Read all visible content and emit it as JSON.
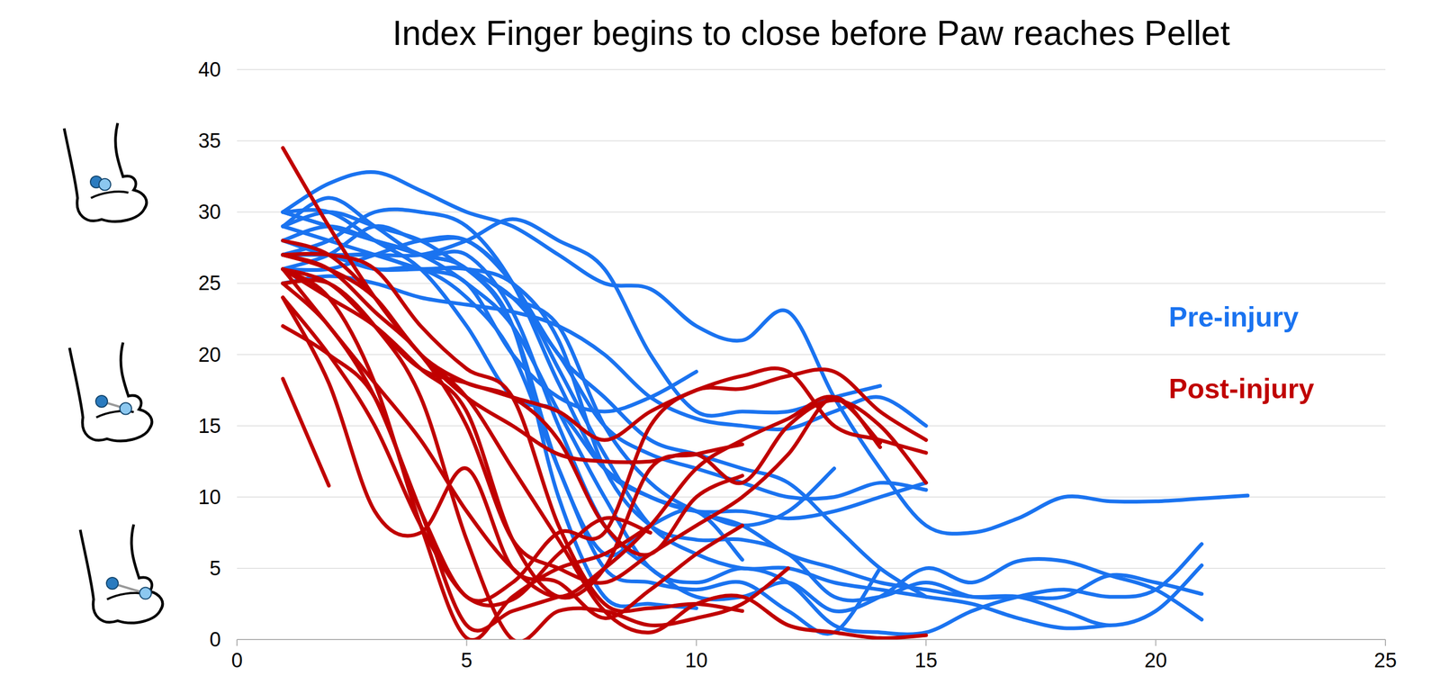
{
  "chart_data": {
    "type": "line",
    "title": "Index Finger begins to close before Paw reaches Pellet",
    "x": [
      1,
      2,
      3,
      4,
      5,
      6,
      7,
      8,
      9,
      10,
      11,
      12,
      13,
      14,
      15,
      16,
      17,
      18,
      19,
      20,
      21,
      22
    ],
    "xlim": [
      0,
      25
    ],
    "xticks": [
      0,
      5,
      10,
      15,
      20,
      25
    ],
    "ylim": [
      0,
      40
    ],
    "yticks": [
      0,
      5,
      10,
      15,
      20,
      25,
      30,
      35,
      40
    ],
    "grid": true,
    "legend": "right",
    "series": [
      {
        "name": "Pre-injury",
        "color": "#1a73f0",
        "values": [
          30,
          32,
          32.8,
          31.5,
          30,
          29,
          27,
          25,
          24.6,
          22,
          21,
          23,
          17,
          12,
          8,
          7.5,
          8.5,
          10,
          9.7,
          9.7,
          9.9,
          10.1
        ]
      },
      {
        "name": "Pre-injury",
        "color": "#1a73f0",
        "values": [
          27,
          27,
          27,
          27,
          28,
          29.5,
          28,
          26,
          20,
          16,
          16,
          16,
          17,
          17.8,
          null,
          null,
          null,
          null,
          null,
          null,
          null,
          null
        ]
      },
      {
        "name": "Pre-injury",
        "color": "#1a73f0",
        "values": [
          29,
          28,
          27,
          26,
          25,
          20,
          17,
          16,
          17,
          18.8,
          null,
          null,
          null,
          null,
          null,
          null,
          null,
          null,
          null,
          null,
          null,
          null
        ]
      },
      {
        "name": "Pre-injury",
        "color": "#1a73f0",
        "values": [
          30,
          29,
          28,
          27,
          26,
          22,
          10,
          3,
          2.5,
          2.2,
          null,
          null,
          null,
          null,
          null,
          null,
          null,
          null,
          null,
          null,
          null,
          null
        ]
      },
      {
        "name": "Pre-injury",
        "color": "#1a73f0",
        "values": [
          28,
          29,
          28,
          27,
          26,
          22,
          12,
          6,
          8,
          9,
          5.6,
          null,
          null,
          null,
          null,
          null,
          null,
          null,
          null,
          null,
          null,
          null
        ]
      },
      {
        "name": "Pre-injury",
        "color": "#1a73f0",
        "values": [
          29,
          30,
          29,
          28,
          26,
          24,
          20,
          15,
          13,
          12,
          11,
          10,
          10,
          11,
          10.5,
          null,
          null,
          null,
          null,
          null,
          null,
          null
        ]
      },
      {
        "name": "Pre-injury",
        "color": "#1a73f0",
        "values": [
          27,
          28,
          30,
          30,
          29,
          25,
          18,
          12,
          10,
          9,
          9,
          8.5,
          9,
          10,
          11,
          null,
          null,
          null,
          null,
          null,
          null,
          null
        ]
      },
      {
        "name": "Pre-injury",
        "color": "#1a73f0",
        "values": [
          30,
          29,
          28,
          27,
          25,
          22,
          16,
          10,
          5,
          4,
          5,
          4,
          1,
          0.5,
          0.5,
          2,
          3,
          3.5,
          3,
          3.5,
          6.7,
          null
        ]
      },
      {
        "name": "Pre-injury",
        "color": "#1a73f0",
        "values": [
          28,
          27,
          27,
          26,
          26,
          24,
          22,
          15,
          11,
          9,
          8,
          6,
          5,
          4,
          3.5,
          3,
          3,
          2,
          1,
          2,
          5.2,
          null
        ]
      },
      {
        "name": "Pre-injury",
        "color": "#1a73f0",
        "values": [
          29,
          31,
          29,
          27,
          27,
          23,
          15,
          8,
          5,
          3,
          3,
          4,
          2,
          3,
          5,
          4,
          5.5,
          5.5,
          4.5,
          3.5,
          1.4,
          null
        ]
      },
      {
        "name": "Pre-injury",
        "color": "#1a73f0",
        "values": [
          27,
          27,
          26,
          26,
          26,
          25,
          21,
          12,
          8,
          7,
          7,
          6,
          3,
          3,
          4,
          3,
          3,
          3,
          4.5,
          4,
          3.2,
          null
        ]
      },
      {
        "name": "Pre-injury",
        "color": "#1a73f0",
        "values": [
          26,
          26,
          27,
          28,
          28,
          25,
          19,
          13,
          8,
          6,
          5,
          5,
          4,
          3.5,
          3,
          2.5,
          1.5,
          0.8,
          1,
          null,
          null,
          null
        ]
      },
      {
        "name": "Pre-injury",
        "color": "#1a73f0",
        "values": [
          28,
          27,
          26,
          26,
          24,
          20,
          12,
          5,
          4,
          3.5,
          4,
          2,
          0.5,
          5,
          null,
          null,
          null,
          null,
          null,
          null,
          null,
          null
        ]
      },
      {
        "name": "Pre-injury",
        "color": "#1a73f0",
        "values": [
          30,
          30,
          28,
          26,
          22,
          17,
          16,
          12,
          10,
          9,
          8,
          9,
          12,
          null,
          null,
          null,
          null,
          null,
          null,
          null,
          null,
          null
        ]
      },
      {
        "name": "Pre-injury",
        "color": "#1a73f0",
        "values": [
          25,
          25.5,
          25,
          24,
          23.5,
          23,
          22,
          20,
          17,
          15.5,
          15,
          14.8,
          16,
          17,
          15,
          null,
          null,
          null,
          null,
          null,
          null,
          null
        ]
      },
      {
        "name": "Pre-injury",
        "color": "#1a73f0",
        "values": [
          26,
          27,
          29,
          28,
          28,
          25,
          20,
          17,
          14,
          13,
          12,
          11,
          8,
          5,
          3,
          null,
          null,
          null,
          null,
          null,
          null,
          null
        ]
      },
      {
        "name": "Post-injury",
        "color": "#c00000",
        "values": [
          18.3,
          10.8,
          null,
          null,
          null,
          null,
          null,
          null,
          null,
          null,
          null,
          null,
          null,
          null,
          null,
          null,
          null,
          null,
          null,
          null,
          null,
          null
        ]
      },
      {
        "name": "Post-injury",
        "color": "#c00000",
        "values": [
          34.5,
          29,
          24,
          20,
          17,
          15,
          13,
          12.5,
          12.5,
          13,
          11,
          15,
          16.8,
          15,
          11,
          null,
          null,
          null,
          null,
          null,
          null,
          null
        ]
      },
      {
        "name": "Post-injury",
        "color": "#c00000",
        "values": [
          26,
          25,
          22,
          19,
          18,
          17,
          16,
          14,
          16,
          17.5,
          18.5,
          18.8,
          15,
          14,
          13.1,
          null,
          null,
          null,
          null,
          null,
          null,
          null
        ]
      },
      {
        "name": "Post-injury",
        "color": "#c00000",
        "values": [
          27,
          26,
          23,
          20,
          15,
          7,
          5,
          4,
          6,
          8,
          10,
          13,
          17,
          13.5,
          null,
          null,
          null,
          null,
          null,
          null,
          null,
          null
        ]
      },
      {
        "name": "Post-injury",
        "color": "#c00000",
        "values": [
          25,
          22,
          17,
          9,
          1,
          2,
          3,
          null,
          null,
          null,
          null,
          null,
          null,
          null,
          null,
          null,
          null,
          null,
          null,
          null,
          null,
          null
        ]
      },
      {
        "name": "Post-injury",
        "color": "#c00000",
        "values": [
          26,
          24,
          18,
          8,
          0.1,
          3,
          5,
          6,
          8,
          null,
          null,
          null,
          null,
          null,
          null,
          null,
          null,
          null,
          null,
          null,
          null,
          null
        ]
      },
      {
        "name": "Post-injury",
        "color": "#c00000",
        "values": [
          24,
          20,
          15,
          8,
          3,
          2.8,
          6,
          8.5,
          7.5,
          null,
          null,
          null,
          null,
          null,
          null,
          null,
          null,
          null,
          null,
          null,
          null,
          null
        ]
      },
      {
        "name": "Post-injury",
        "color": "#c00000",
        "values": [
          28,
          27,
          24,
          20,
          17,
          12,
          7,
          2,
          0.5,
          2.5,
          3,
          1,
          0.5,
          0.1,
          0.3,
          null,
          null,
          null,
          null,
          null,
          null,
          null
        ]
      },
      {
        "name": "Post-injury",
        "color": "#c00000",
        "values": [
          27,
          26,
          24,
          20,
          18,
          17,
          14,
          8,
          6,
          10,
          11.5,
          null,
          null,
          null,
          null,
          null,
          null,
          null,
          null,
          null,
          null,
          null
        ]
      },
      {
        "name": "Post-injury",
        "color": "#c00000",
        "values": [
          25,
          25,
          22,
          17,
          7,
          0,
          2,
          2,
          1,
          1.5,
          2.5,
          5,
          null,
          null,
          null,
          null,
          null,
          null,
          null,
          null,
          null,
          null
        ]
      },
      {
        "name": "Post-injury",
        "color": "#c00000",
        "values": [
          26,
          24,
          22,
          19,
          16,
          7,
          3,
          5,
          12,
          13,
          13.7,
          null,
          null,
          null,
          null,
          null,
          null,
          null,
          null,
          null,
          null,
          null
        ]
      },
      {
        "name": "Post-injury",
        "color": "#c00000",
        "values": [
          24,
          18,
          9,
          7.5,
          12,
          5,
          4,
          1.5,
          3.5,
          6,
          8,
          null,
          null,
          null,
          null,
          null,
          null,
          null,
          null,
          null,
          null,
          null
        ]
      },
      {
        "name": "Post-injury",
        "color": "#c00000",
        "values": [
          27,
          27,
          26,
          22,
          19,
          17,
          8,
          2.5,
          2.2,
          2.5,
          2,
          null,
          null,
          null,
          null,
          null,
          null,
          null,
          null,
          null,
          null,
          null
        ]
      },
      {
        "name": "Post-injury",
        "color": "#c00000",
        "values": [
          22,
          20,
          17,
          9,
          3,
          4,
          7.5,
          7.5,
          15,
          17.5,
          17.6,
          18.5,
          18.8,
          16,
          14,
          null,
          null,
          null,
          null,
          null,
          null,
          null
        ]
      },
      {
        "name": "Post-injury",
        "color": "#c00000",
        "values": [
          26,
          22,
          18,
          14,
          9,
          5,
          3,
          5,
          8,
          12,
          14,
          15.5,
          17,
          13.8,
          null,
          null,
          null,
          null,
          null,
          null,
          null,
          null
        ]
      }
    ]
  }
}
